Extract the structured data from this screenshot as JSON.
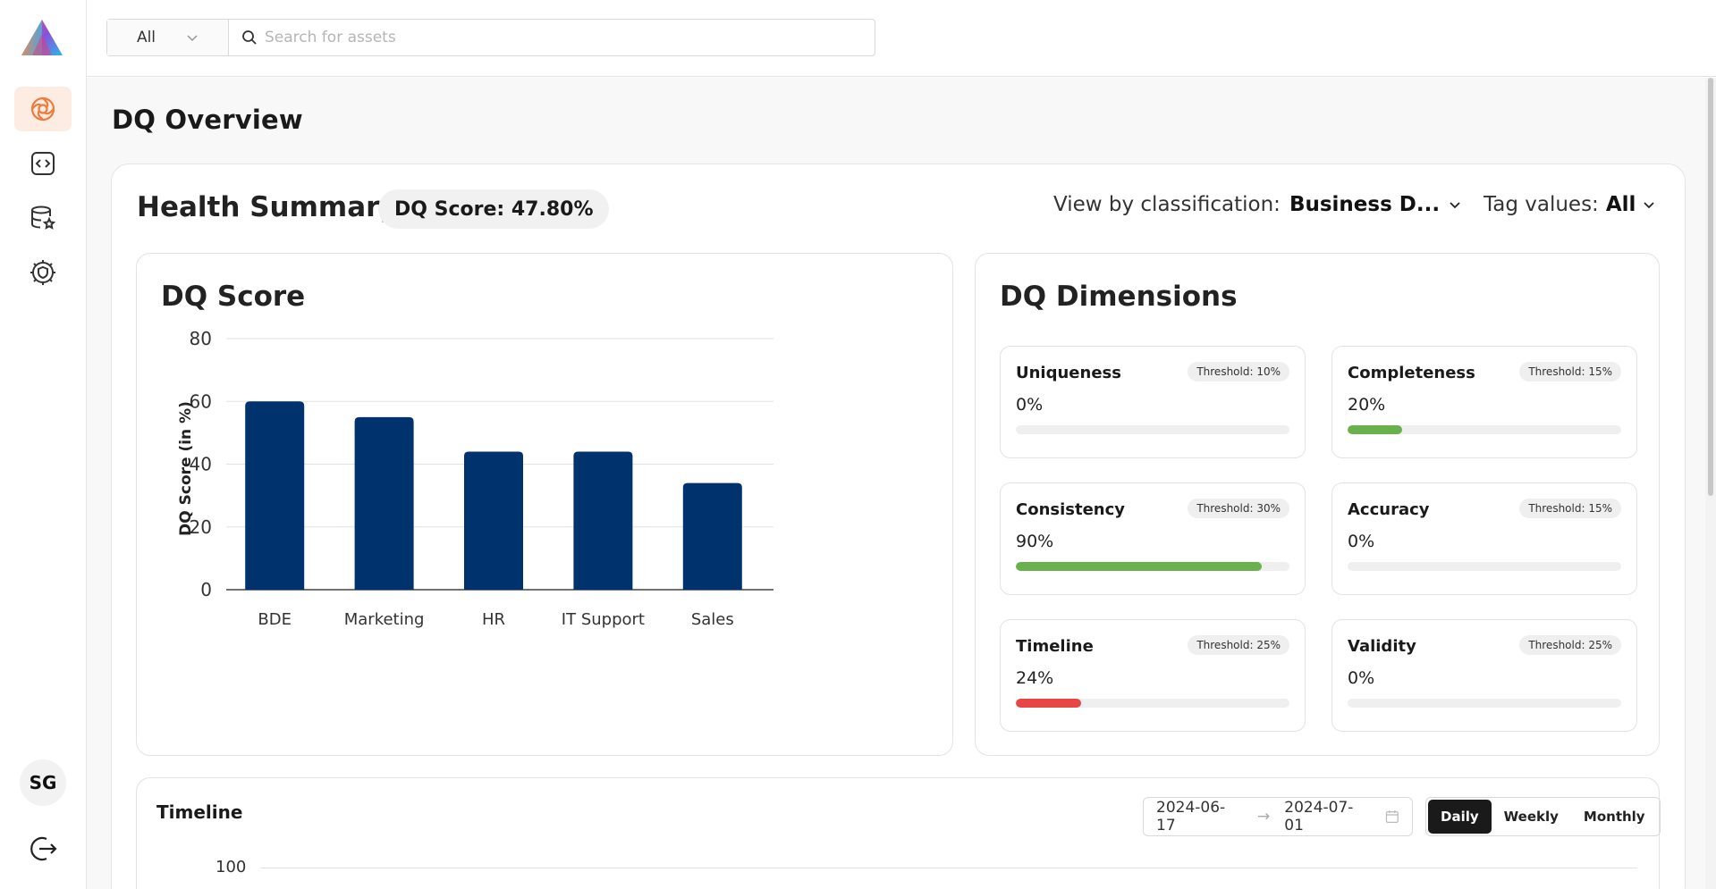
{
  "sidebar": {
    "avatar_initials": "SG",
    "nav": [
      {
        "icon": "analytics-icon",
        "active": true
      },
      {
        "icon": "code-icon",
        "active": false
      },
      {
        "icon": "database-star-icon",
        "active": false
      },
      {
        "icon": "shield-gear-icon",
        "active": false
      }
    ]
  },
  "topbar": {
    "scope": "All",
    "search_placeholder": "Search for assets",
    "search_value": ""
  },
  "page": {
    "title": "DQ Overview"
  },
  "health": {
    "title": "Health Summary",
    "score_pill": "DQ Score: 47.80%",
    "view_by_label": "View by classification:",
    "view_by_value": "Business D...",
    "tag_values_label": "Tag values:",
    "tag_values_value": "All"
  },
  "score_panel": {
    "title": "DQ Score"
  },
  "chart_data": {
    "type": "bar",
    "title": "DQ Score",
    "categories": [
      "BDE",
      "Marketing",
      "HR",
      "IT Support",
      "Sales"
    ],
    "values": [
      60,
      55,
      44,
      44,
      34
    ],
    "xlabel": "",
    "ylabel": "DQ Score (in %)",
    "ylim": [
      0,
      80
    ],
    "yticks": [
      0,
      20,
      40,
      60,
      80
    ],
    "grid": true,
    "bar_color": "#00336e"
  },
  "dimensions": {
    "title": "DQ Dimensions",
    "items": [
      {
        "name": "Uniqueness",
        "threshold": "Threshold: 10%",
        "value": "0%",
        "level": 0,
        "color": "#6ab04c"
      },
      {
        "name": "Completeness",
        "threshold": "Threshold: 15%",
        "value": "20%",
        "level": 0.2,
        "color": "#6ab04c"
      },
      {
        "name": "Consistency",
        "threshold": "Threshold: 30%",
        "value": "90%",
        "level": 0.9,
        "color": "#6ab04c"
      },
      {
        "name": "Accuracy",
        "threshold": "Threshold: 15%",
        "value": "0%",
        "level": 0,
        "color": "#6ab04c"
      },
      {
        "name": "Timeline",
        "threshold": "Threshold: 25%",
        "value": "24%",
        "level": 0.24,
        "color": "#e84545"
      },
      {
        "name": "Validity",
        "threshold": "Threshold: 25%",
        "value": "0%",
        "level": 0,
        "color": "#6ab04c"
      }
    ]
  },
  "timeline": {
    "title": "Timeline",
    "start_date": "2024-06-17",
    "end_date": "2024-07-01",
    "arrow": "→",
    "periods": [
      "Daily",
      "Weekly",
      "Monthly"
    ],
    "active_period": "Daily",
    "top_tick": "100"
  },
  "colors": {
    "accent": "#f07a3a",
    "accent_bg": "#fdece2",
    "bar": "#00336e",
    "good": "#6ab04c",
    "bad": "#e84545"
  }
}
